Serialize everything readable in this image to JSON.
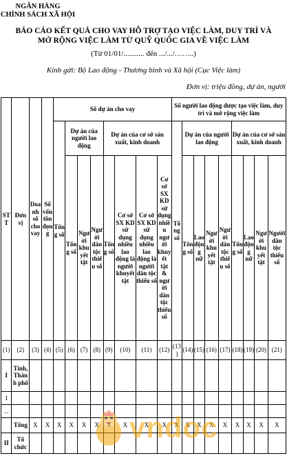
{
  "header": {
    "org_line1": "NGÂN HÀNG",
    "org_line2": "CHÍNH SÁCH XÃ HỘI",
    "title_line1": "BÁO CÁO KẾT QUẢ CHO VAY HỖ TRỢ TẠO VIỆC LÀM, DUY TRÌ VÀ",
    "title_line2": "MỞ RỘNG VIỆC LÀM TỪ QUỸ QUỐC GIA VỀ VIỆC LÀM",
    "period": "(Từ 01/01/........... đến .../.../……..)",
    "recipient": "Kính gửi: Bộ Lao động - Thương binh và Xã hội (Cục Việc làm)",
    "unit": "Đơn vị: triệu đồng, dự án, người"
  },
  "table": {
    "col_stt": "STT",
    "col_donvi": "Đơn vị",
    "col_doanhso": "Doanh số cho vay",
    "col_sovon": "Số vốn tồn đọng",
    "group_projects": "Số dự án cho vay",
    "group_workers": "Số người lao động được tạo việc làm, duy trì và mở rộng việc làm",
    "sub_worker_projects": "Dự án của người lao động",
    "sub_business_projects": "Dự án của cơ sở sản xuất, kinh doanh",
    "sub_worker_projects_2": "Dự án của người lao động",
    "sub_business_projects_2": "Dự án của cơ sở sản xuất, kinh doanh",
    "tong_so": "Tổng số",
    "nguoi_khuyet_tat": "Người khuyết tật",
    "nguoi_dan_toc": "Người dân tộc thiểu số",
    "cs_khuyet_tat": "Cơ sở SX KD sử dụng nhiều lao động là người khuyết tật",
    "cs_dan_toc": "Cơ sở SX KD sử dụng nhiều lao động là người dân tộc thiểu số",
    "cs_ca_hai": "Cơ sở SX KD sử dụng nhiều người khuyết tật & người dân tộc thiểu số",
    "lao_dong_nu": "Lao động nữ",
    "col_numbers": [
      "(1)",
      "(2)",
      "(3)",
      "(4)",
      "(5)",
      "(6)",
      "(7)",
      "(8)",
      "(9)",
      "(10)",
      "(11)",
      "(12)",
      "(13)",
      "(14)",
      "(15)",
      "(16)",
      "(17)",
      "(18)",
      "(19)",
      "(20)",
      "(21)"
    ],
    "row_I_stt": "I",
    "row_I_name": "Tỉnh, Thành phố",
    "row_1_stt": "1",
    "row_dots": "...",
    "row_total_label": "Tổng",
    "x_mark": "X",
    "row_II_stt": "II",
    "row_II_name": "Tổ chức"
  },
  "watermark": {
    "text": "vndoc"
  }
}
